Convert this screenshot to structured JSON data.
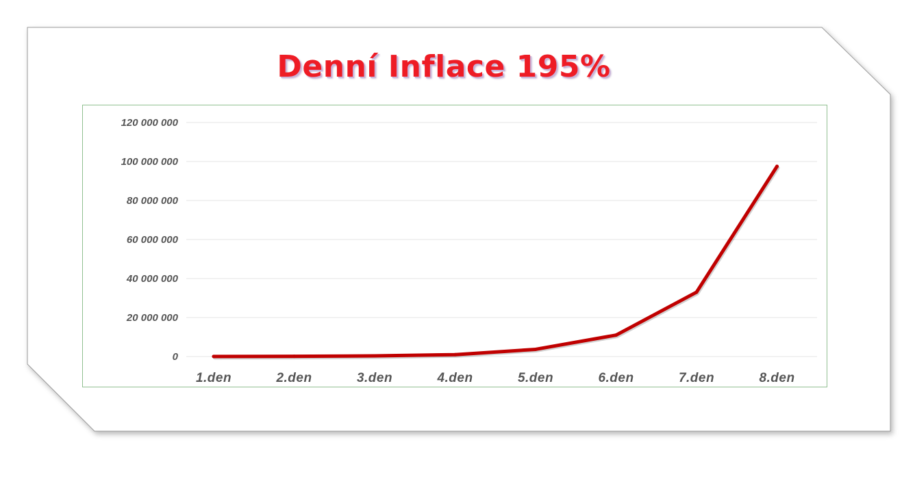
{
  "colors": {
    "title": "#ee1c25",
    "line": "#c00000",
    "grid": "#e6e6e6",
    "tick_text": "#555555",
    "chart_border": "#8fbf8f",
    "card_border": "#9a9a9a"
  },
  "chart_data": {
    "type": "line",
    "title": "Denní Inflace 195%",
    "xlabel": "",
    "ylabel": "",
    "categories": [
      "1.den",
      "2.den",
      "3.den",
      "4.den",
      "5.den",
      "6.den",
      "7.den",
      "8.den"
    ],
    "series": [
      {
        "values": [
          38300,
          113000,
          333300,
          983300,
          3700000,
          11000000,
          33000000,
          97500000
        ]
      }
    ],
    "ylim": [
      0,
      120000000
    ],
    "yticks": [
      0,
      20000000,
      40000000,
      60000000,
      80000000,
      100000000,
      120000000
    ],
    "ytick_labels": [
      "0",
      "20 000 000",
      "40 000 000",
      "60 000 000",
      "80 000 000",
      "100 000 000",
      "120 000 000"
    ],
    "grid": true,
    "legend": "none"
  }
}
